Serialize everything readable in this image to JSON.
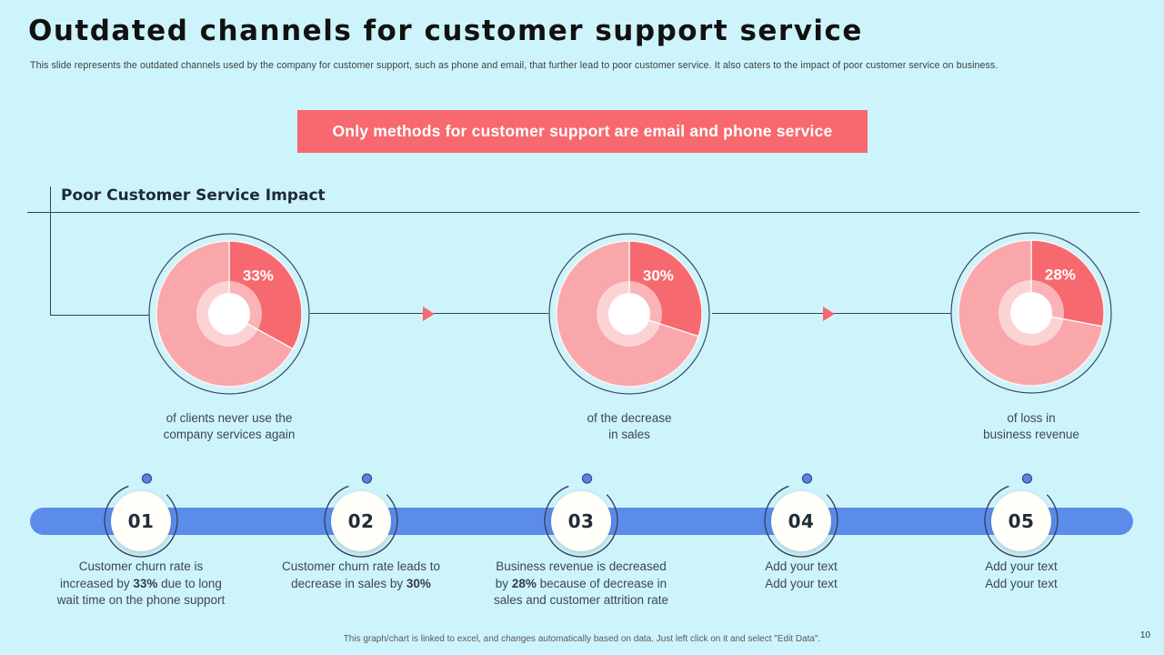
{
  "page": {
    "background_color": "#CEF4FB",
    "page_number": "10"
  },
  "header": {
    "title": "Outdated channels for customer support service",
    "subtitle": "This slide represents the outdated channels used by the company for customer support, such as phone and email, that further lead to poor customer service. It also caters to the impact of poor customer service on business."
  },
  "banner": {
    "text": "Only methods for customer support are email and phone service",
    "background_color": "#F7696E"
  },
  "impact_section": {
    "heading": "Poor Customer Service Impact"
  },
  "chart_data": {
    "type": "pie",
    "subtype": "donut",
    "title": "Poor Customer Service Impact",
    "slice_color": "#F5696F",
    "remainder_color": "#F9A7AB",
    "legend": "none",
    "donuts": [
      {
        "value": 33,
        "remainder": 67,
        "label": "33%",
        "caption": "of clients never use the\ncompany services again"
      },
      {
        "value": 30,
        "remainder": 70,
        "label": "30%",
        "caption": "of the decrease\nin sales"
      },
      {
        "value": 28,
        "remainder": 72,
        "label": "28%",
        "caption": "of loss in\nbusiness revenue"
      }
    ]
  },
  "timeline": {
    "bar_color": "#5C8CEA",
    "milestones": [
      {
        "number": "01",
        "text": [
          {
            "t": "Customer churn rate is\nincreased by "
          },
          {
            "t": "33%",
            "b": true
          },
          {
            "t": " due to long\nwait time on the phone support"
          }
        ]
      },
      {
        "number": "02",
        "text": [
          {
            "t": "Customer churn rate leads to\ndecrease in sales by "
          },
          {
            "t": "30%",
            "b": true
          }
        ]
      },
      {
        "number": "03",
        "text": [
          {
            "t": "Business revenue is decreased\nby "
          },
          {
            "t": "28%",
            "b": true
          },
          {
            "t": " because of decrease in\nsales and customer attrition rate"
          }
        ]
      },
      {
        "number": "04",
        "text": [
          {
            "t": "Add your text\nAdd your text"
          }
        ]
      },
      {
        "number": "05",
        "text": [
          {
            "t": "Add your text\nAdd your text"
          }
        ]
      }
    ]
  },
  "footer": {
    "note": "This graph/chart is linked to excel, and changes automatically based on data. Just left click on it and select \"Edit Data\"."
  }
}
